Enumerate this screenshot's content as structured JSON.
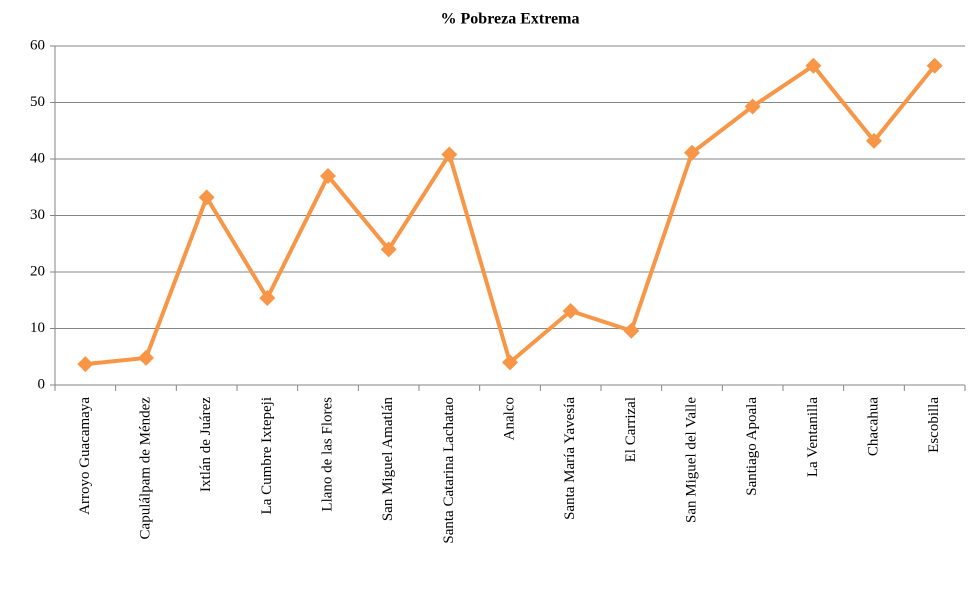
{
  "chart_data": {
    "type": "line",
    "title": "% Pobreza Extrema",
    "categories": [
      "Arroyo Guacamaya",
      "Capulálpam de Méndez",
      "Ixtlán de Juárez",
      "La Cumbre Ixtepeji",
      "Llano de las Flores",
      "San Miguel Amatlán",
      "Santa Catarina Lachatao",
      "Analco",
      "Santa María Yavesía",
      "El Carrizal",
      "San Miguel del Valle",
      "Santiago Apoala",
      "La Ventanilla",
      "Chacahua",
      "Escobilla"
    ],
    "values": [
      3.7,
      4.8,
      33.2,
      15.4,
      37,
      24,
      40.8,
      4,
      13.1,
      9.6,
      41.1,
      49.3,
      56.5,
      43.2,
      56.5
    ],
    "color": "#f79646",
    "ylim": [
      0,
      60
    ],
    "yticks": [
      0,
      10,
      20,
      30,
      40,
      50,
      60
    ],
    "grid": true
  }
}
